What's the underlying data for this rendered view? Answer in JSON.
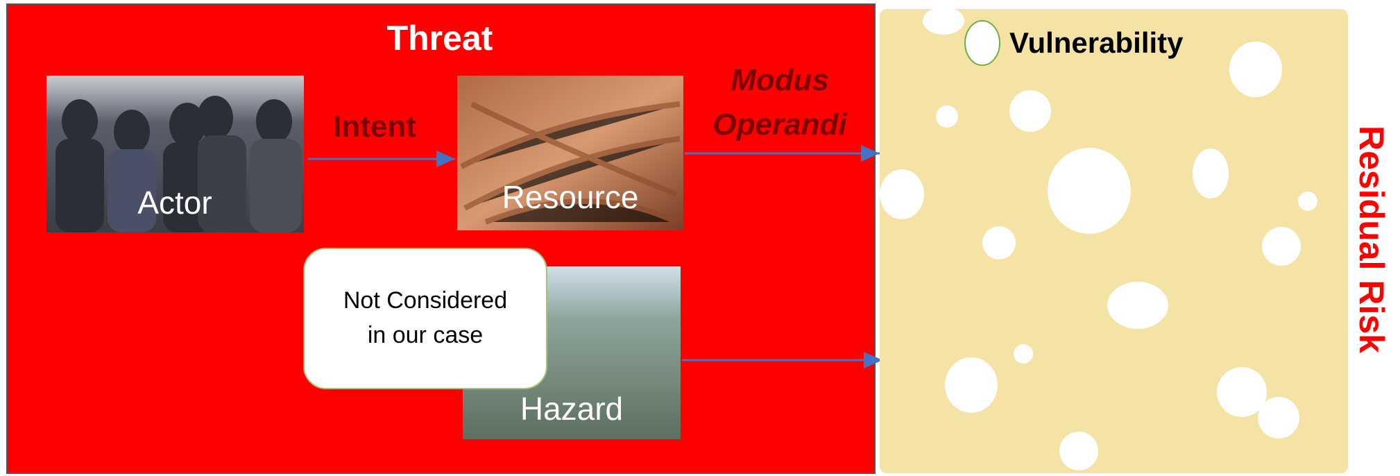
{
  "threat": {
    "title": "Threat",
    "actor": "Actor",
    "intent": "Intent",
    "resource": "Resource",
    "modus_operandi": [
      "Modus",
      "Operandi"
    ],
    "hazard": "Hazard",
    "note": [
      "Not Considered",
      "in our case"
    ]
  },
  "vulnerability": {
    "label": "Vulnerability"
  },
  "residual_risk": "Residual Risk"
}
